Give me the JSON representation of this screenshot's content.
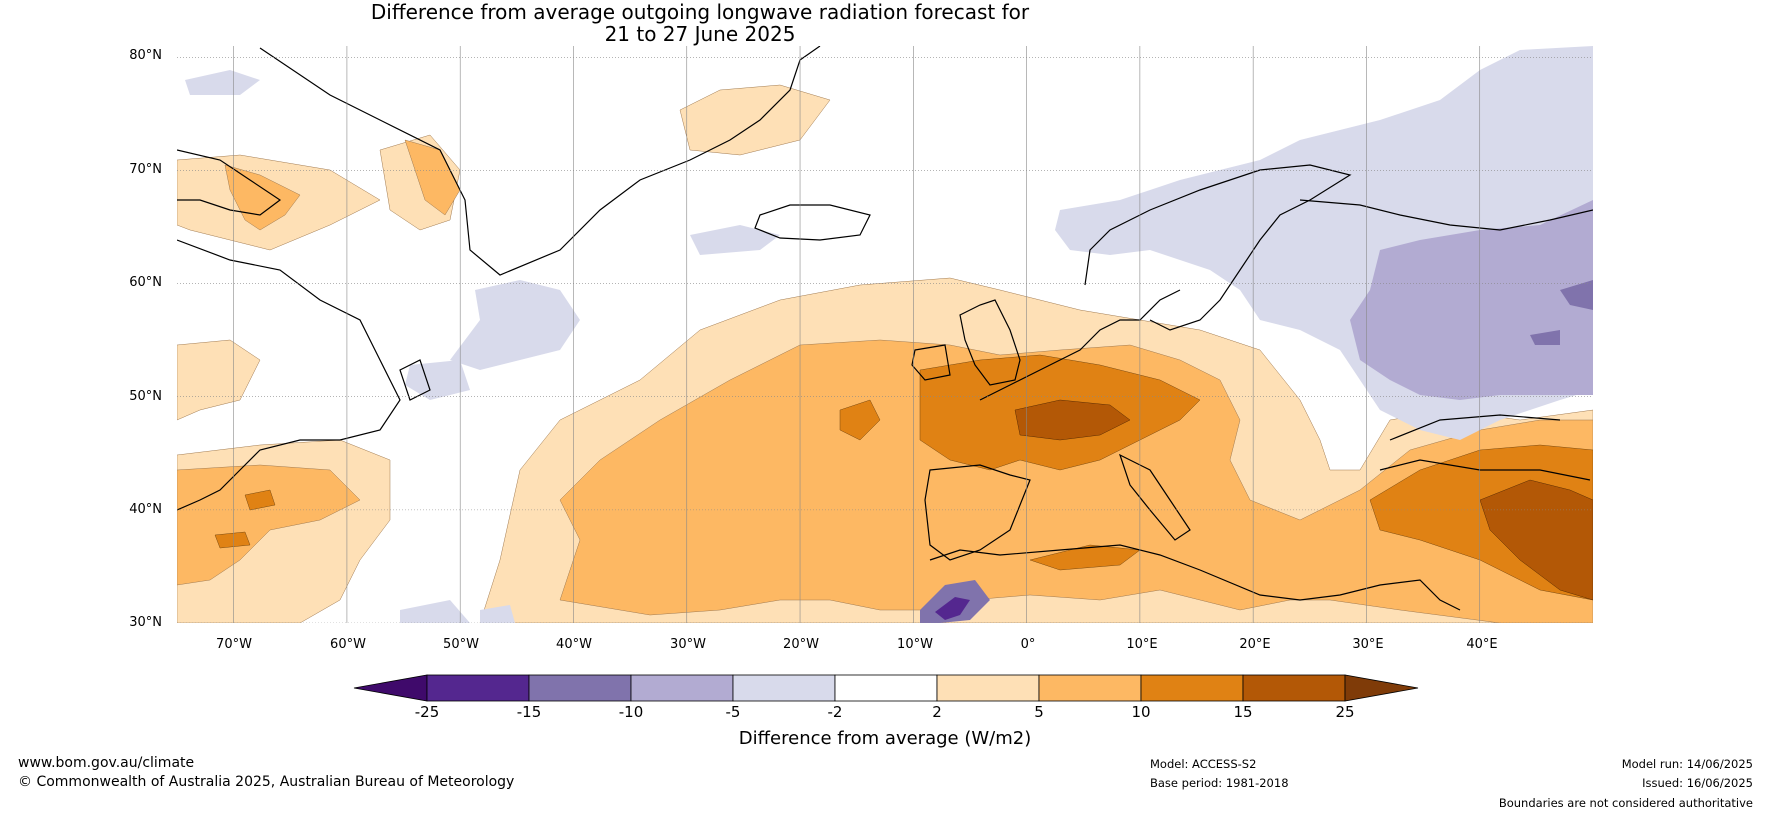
{
  "title_line1": "Difference from average outgoing longwave radiation forecast for",
  "title_line2": "21 to 27 June 2025",
  "latitude_labels": [
    "80°N",
    "70°N",
    "60°N",
    "50°N",
    "40°N",
    "30°N"
  ],
  "longitude_labels": [
    "70°W",
    "60°W",
    "50°W",
    "40°W",
    "30°W",
    "20°W",
    "10°W",
    "0°",
    "10°E",
    "20°E",
    "30°E",
    "40°E"
  ],
  "map_extent": {
    "lon_min": -75,
    "lon_max": 50,
    "lat_min": 30,
    "lat_max": 81
  },
  "colorbar": {
    "tick_labels": [
      "-25",
      "-15",
      "-10",
      "-5",
      "-2",
      "2",
      "5",
      "10",
      "15",
      "25"
    ],
    "colors": [
      "#3f0a6b",
      "#54278f",
      "#8073ac",
      "#b2abd2",
      "#d8daeb",
      "#ffffff",
      "#fee0b6",
      "#fdb863",
      "#e08214",
      "#b35806",
      "#7f3b08"
    ],
    "title": "Difference from average (W/m2)"
  },
  "footer": {
    "website": "www.bom.gov.au/climate",
    "copyright": "© Commonwealth of Australia 2025, Australian Bureau of Meteorology",
    "model": "Model: ACCESS-S2",
    "base_period": "Base period: 1981-2018",
    "model_run": "Model run: 14/06/2025",
    "issued": "Issued: 16/06/2025",
    "disclaimer": "Boundaries are not considered authoritative"
  }
}
